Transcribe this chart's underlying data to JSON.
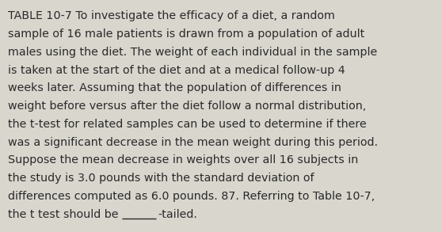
{
  "background_color": "#d9d6ce",
  "text_color": "#2a2a2a",
  "font_size": 10.3,
  "font_family": "DejaVu Sans",
  "lines": [
    "TABLE 10-7 To investigate the efficacy of a diet, a random",
    "sample of 16 male patients is drawn from a population of adult",
    "males using the diet. The weight of each individual in the sample",
    "is taken at the start of the diet and at a medical follow-up 4",
    "weeks later. Assuming that the population of differences in",
    "weight before versus after the diet follow a normal distribution,",
    "the t-test for related samples can be used to determine if there",
    "was a significant decrease in the mean weight during this period.",
    "Suppose the mean decrease in weights over all 16 subjects in",
    "the study is 3.0 pounds with the standard deviation of",
    "differences computed as 6.0 pounds. 87. Referring to Table 10-7,",
    "the t test should be ______-tailed."
  ],
  "last_line_before": "the t test should be ",
  "last_line_after": "-tailed.",
  "underline_text": "______"
}
